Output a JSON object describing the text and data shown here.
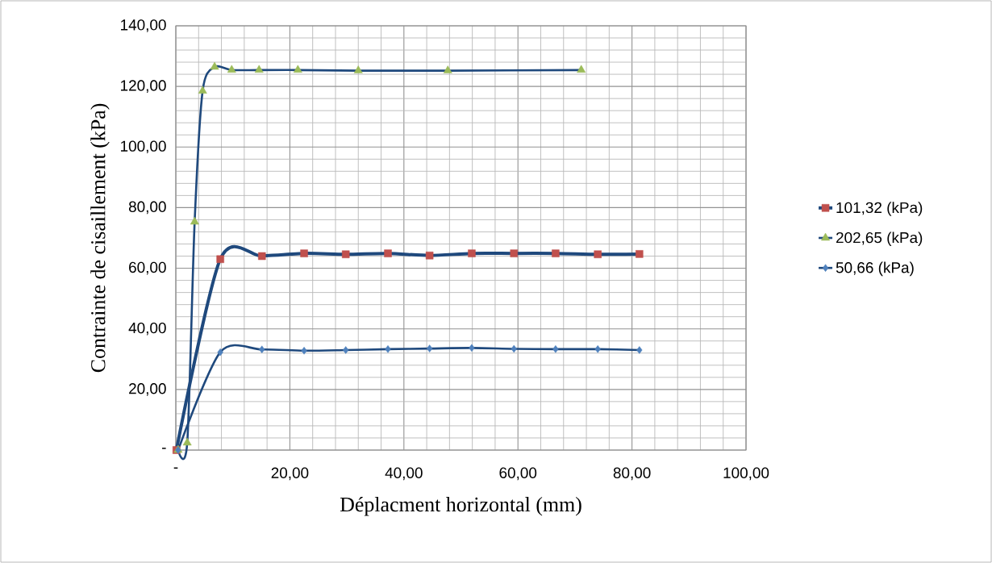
{
  "chart_data": {
    "type": "line",
    "xlabel": "Déplacment horizontal (mm)",
    "ylabel": "Contrainte de cisaillement (kPa)",
    "xlim": [
      0,
      100
    ],
    "ylim": [
      0,
      140
    ],
    "xticks": [
      {
        "value": 0,
        "label": "-"
      },
      {
        "value": 20,
        "label": "20,00"
      },
      {
        "value": 40,
        "label": "40,00"
      },
      {
        "value": 60,
        "label": "60,00"
      },
      {
        "value": 80,
        "label": "80,00"
      },
      {
        "value": 100,
        "label": "100,00"
      }
    ],
    "yticks": [
      {
        "value": 0,
        "label": "-"
      },
      {
        "value": 20,
        "label": "20,00"
      },
      {
        "value": 40,
        "label": "40,00"
      },
      {
        "value": 60,
        "label": "60,00"
      },
      {
        "value": 80,
        "label": "80,00"
      },
      {
        "value": 100,
        "label": "100,00"
      },
      {
        "value": 120,
        "label": "120,00"
      },
      {
        "value": 140,
        "label": "140,00"
      }
    ],
    "grid": true,
    "legend": "right",
    "line_style": "solid",
    "series": [
      {
        "name": "101,32 (kPa)",
        "color": "#c0504d",
        "marker": "square",
        "x": [
          0.1,
          7.8,
          15.1,
          22.5,
          29.8,
          37.2,
          44.5,
          51.9,
          59.3,
          66.6,
          74.0,
          81.3
        ],
        "values": [
          0,
          63.0,
          64.0,
          64.9,
          64.6,
          64.9,
          64.2,
          64.9,
          64.9,
          64.9,
          64.6,
          64.7
        ]
      },
      {
        "name": "202,65 (kPa)",
        "color": "#9bbb59",
        "marker": "triangle",
        "x": [
          0.4,
          2.0,
          3.3,
          4.7,
          6.8,
          9.8,
          14.6,
          21.4,
          32.0,
          47.7,
          71.1
        ],
        "values": [
          0,
          2.4,
          75.3,
          118.5,
          126.4,
          125.4,
          125.4,
          125.4,
          125.2,
          125.2,
          125.4
        ]
      },
      {
        "name": "50,66 (kPa)",
        "color": "#4f81bd",
        "marker": "diamond",
        "x": [
          0.4,
          7.8,
          15.1,
          22.5,
          29.8,
          37.2,
          44.5,
          51.9,
          59.3,
          66.6,
          74.0,
          81.3
        ],
        "values": [
          0,
          32.3,
          33.2,
          32.8,
          33.0,
          33.3,
          33.5,
          33.7,
          33.4,
          33.3,
          33.3,
          33.0
        ]
      }
    ]
  }
}
